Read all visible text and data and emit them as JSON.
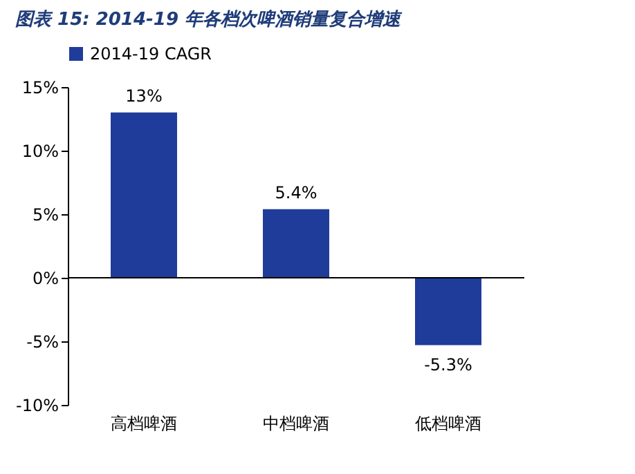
{
  "chart_data": {
    "type": "bar",
    "title": "图表 15:  2014-19 年各档次啤酒销量复合增速",
    "categories": [
      "高档啤酒",
      "中档啤酒",
      "低档啤酒"
    ],
    "series": [
      {
        "name": "2014-19 CAGR",
        "color": "#1f3c9a",
        "values": [
          13,
          5.4,
          -5.3
        ],
        "value_labels": [
          "13%",
          "5.4%",
          "-5.3%"
        ]
      }
    ],
    "ylim": [
      -10,
      15
    ],
    "yticks": [
      {
        "value": -10,
        "label": "-10%"
      },
      {
        "value": -5,
        "label": "-5%"
      },
      {
        "value": 0,
        "label": "0%"
      },
      {
        "value": 5,
        "label": "5%"
      },
      {
        "value": 10,
        "label": "10%"
      },
      {
        "value": 15,
        "label": "15%"
      }
    ],
    "ref_lines": [
      {
        "axis": "y",
        "value": 0,
        "color": "#000000"
      }
    ],
    "grid": false,
    "legend": "top"
  }
}
